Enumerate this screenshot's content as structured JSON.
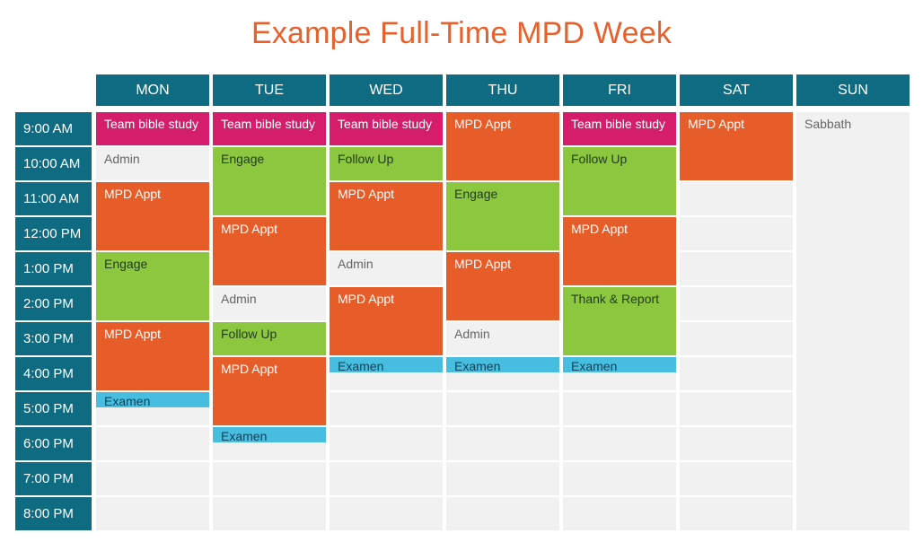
{
  "title": "Example Full-Time MPD Week",
  "days": [
    "MON",
    "TUE",
    "WED",
    "THU",
    "FRI",
    "SAT",
    "SUN"
  ],
  "times": [
    "9:00 AM",
    "10:00 AM",
    "11:00 AM",
    "12:00 PM",
    "1:00 PM",
    "2:00 PM",
    "3:00 PM",
    "4:00 PM",
    "5:00 PM",
    "6:00 PM",
    "7:00 PM",
    "8:00 PM"
  ],
  "colors": {
    "header": "#0e6b82",
    "team_bible_study": "#d41e6b",
    "mpd_appt": "#e65d2a",
    "engage_follow_up": "#8dc63f",
    "examen": "#47bedf",
    "cell": "#f1f1f1",
    "title": "#e8602c"
  },
  "events": [
    {
      "day": 0,
      "start": 0,
      "dur": 1,
      "label": "Team bible study",
      "kind": "pink"
    },
    {
      "day": 0,
      "start": 1,
      "dur": 1,
      "label": "Admin",
      "kind": "plain"
    },
    {
      "day": 0,
      "start": 2,
      "dur": 2,
      "label": "MPD Appt",
      "kind": "orange"
    },
    {
      "day": 0,
      "start": 4,
      "dur": 2,
      "label": "Engage",
      "kind": "green"
    },
    {
      "day": 0,
      "start": 6,
      "dur": 2,
      "label": "MPD Appt",
      "kind": "orange"
    },
    {
      "day": 0,
      "start": 8,
      "dur": 0.5,
      "label": "Examen",
      "kind": "cyan"
    },
    {
      "day": 1,
      "start": 0,
      "dur": 1,
      "label": "Team bible study",
      "kind": "pink"
    },
    {
      "day": 1,
      "start": 1,
      "dur": 2,
      "label": "Engage",
      "kind": "green"
    },
    {
      "day": 1,
      "start": 3,
      "dur": 2,
      "label": "MPD Appt",
      "kind": "orange"
    },
    {
      "day": 1,
      "start": 5,
      "dur": 1,
      "label": "Admin",
      "kind": "plain"
    },
    {
      "day": 1,
      "start": 6,
      "dur": 1,
      "label": "Follow Up",
      "kind": "green"
    },
    {
      "day": 1,
      "start": 7,
      "dur": 2,
      "label": "MPD Appt",
      "kind": "orange"
    },
    {
      "day": 1,
      "start": 9,
      "dur": 0.5,
      "label": "Examen",
      "kind": "cyan"
    },
    {
      "day": 2,
      "start": 0,
      "dur": 1,
      "label": "Team bible study",
      "kind": "pink"
    },
    {
      "day": 2,
      "start": 1,
      "dur": 1,
      "label": "Follow Up",
      "kind": "green"
    },
    {
      "day": 2,
      "start": 2,
      "dur": 2,
      "label": "MPD Appt",
      "kind": "orange"
    },
    {
      "day": 2,
      "start": 4,
      "dur": 1,
      "label": "Admin",
      "kind": "plain"
    },
    {
      "day": 2,
      "start": 5,
      "dur": 2,
      "label": "MPD Appt",
      "kind": "orange"
    },
    {
      "day": 2,
      "start": 7,
      "dur": 0.5,
      "label": "Examen",
      "kind": "cyan"
    },
    {
      "day": 3,
      "start": 0,
      "dur": 2,
      "label": "MPD Appt",
      "kind": "orange"
    },
    {
      "day": 3,
      "start": 2,
      "dur": 2,
      "label": "Engage",
      "kind": "green"
    },
    {
      "day": 3,
      "start": 4,
      "dur": 2,
      "label": "MPD Appt",
      "kind": "orange"
    },
    {
      "day": 3,
      "start": 6,
      "dur": 1,
      "label": "Admin",
      "kind": "plain"
    },
    {
      "day": 3,
      "start": 7,
      "dur": 0.5,
      "label": "Examen",
      "kind": "cyan"
    },
    {
      "day": 4,
      "start": 0,
      "dur": 1,
      "label": "Team bible study",
      "kind": "pink"
    },
    {
      "day": 4,
      "start": 1,
      "dur": 2,
      "label": "Follow Up",
      "kind": "green"
    },
    {
      "day": 4,
      "start": 3,
      "dur": 2,
      "label": "MPD Appt",
      "kind": "orange"
    },
    {
      "day": 4,
      "start": 5,
      "dur": 2,
      "label": "Thank & Report",
      "kind": "green"
    },
    {
      "day": 4,
      "start": 7,
      "dur": 0.5,
      "label": "Examen",
      "kind": "cyan"
    },
    {
      "day": 5,
      "start": 0,
      "dur": 2,
      "label": "MPD Appt",
      "kind": "orange"
    },
    {
      "day": 6,
      "start": 0,
      "dur": 12,
      "label": "Sabbath",
      "kind": "plain"
    }
  ]
}
